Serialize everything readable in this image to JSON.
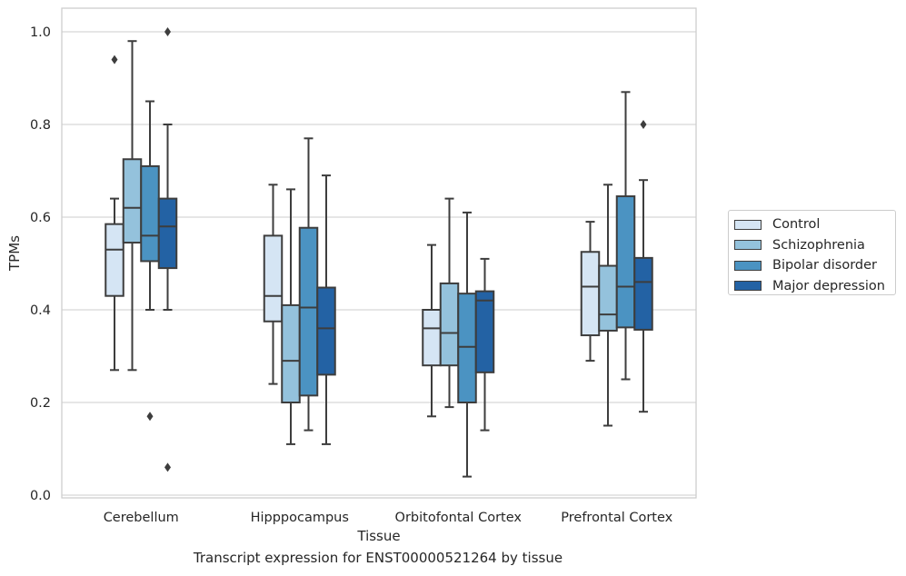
{
  "chart_data": {
    "type": "box",
    "caption": "Transcript expression for ENST00000521264 by tissue",
    "xlabel": "Tissue",
    "ylabel": "TPMs",
    "ylim": [
      -0.01,
      1.05
    ],
    "yticks": [
      0.0,
      0.2,
      0.4,
      0.6,
      0.8,
      1.0
    ],
    "ytick_labels": [
      "0.0",
      "0.2",
      "0.4",
      "0.6",
      "0.8",
      "1.0"
    ],
    "grid": "horizontal",
    "legend_position": "right",
    "categories": [
      "Cerebellum",
      "Hipppocampus",
      "Orbitofontal Cortex",
      "Prefrontal Cortex"
    ],
    "series": [
      {
        "name": "Control",
        "color": "#d5e5f4",
        "boxes": [
          {
            "whislo": 0.27,
            "q1": 0.43,
            "med": 0.53,
            "q3": 0.585,
            "whishi": 0.64,
            "fliers": [
              0.94
            ]
          },
          {
            "whislo": 0.24,
            "q1": 0.375,
            "med": 0.43,
            "q3": 0.56,
            "whishi": 0.67,
            "fliers": []
          },
          {
            "whislo": 0.17,
            "q1": 0.28,
            "med": 0.36,
            "q3": 0.4,
            "whishi": 0.54,
            "fliers": []
          },
          {
            "whislo": 0.29,
            "q1": 0.345,
            "med": 0.45,
            "q3": 0.525,
            "whishi": 0.59,
            "fliers": []
          }
        ]
      },
      {
        "name": "Schizophrenia",
        "color": "#94c2dc",
        "boxes": [
          {
            "whislo": 0.27,
            "q1": 0.545,
            "med": 0.62,
            "q3": 0.725,
            "whishi": 0.98,
            "fliers": []
          },
          {
            "whislo": 0.11,
            "q1": 0.2,
            "med": 0.29,
            "q3": 0.41,
            "whishi": 0.66,
            "fliers": []
          },
          {
            "whislo": 0.19,
            "q1": 0.28,
            "med": 0.35,
            "q3": 0.457,
            "whishi": 0.64,
            "fliers": []
          },
          {
            "whislo": 0.15,
            "q1": 0.355,
            "med": 0.39,
            "q3": 0.495,
            "whishi": 0.67,
            "fliers": []
          }
        ]
      },
      {
        "name": "Bipolar disorder",
        "color": "#4b93c2",
        "boxes": [
          {
            "whislo": 0.4,
            "q1": 0.505,
            "med": 0.56,
            "q3": 0.71,
            "whishi": 0.85,
            "fliers": [
              0.17
            ]
          },
          {
            "whislo": 0.14,
            "q1": 0.215,
            "med": 0.405,
            "q3": 0.577,
            "whishi": 0.77,
            "fliers": []
          },
          {
            "whislo": 0.04,
            "q1": 0.2,
            "med": 0.32,
            "q3": 0.435,
            "whishi": 0.61,
            "fliers": []
          },
          {
            "whislo": 0.25,
            "q1": 0.362,
            "med": 0.45,
            "q3": 0.645,
            "whishi": 0.87,
            "fliers": []
          }
        ]
      },
      {
        "name": "Major depression",
        "color": "#2362a4",
        "boxes": [
          {
            "whislo": 0.4,
            "q1": 0.49,
            "med": 0.58,
            "q3": 0.64,
            "whishi": 0.8,
            "fliers": [
              1.0,
              0.06
            ]
          },
          {
            "whislo": 0.11,
            "q1": 0.26,
            "med": 0.36,
            "q3": 0.448,
            "whishi": 0.69,
            "fliers": []
          },
          {
            "whislo": 0.14,
            "q1": 0.265,
            "med": 0.42,
            "q3": 0.44,
            "whishi": 0.51,
            "fliers": []
          },
          {
            "whislo": 0.18,
            "q1": 0.357,
            "med": 0.46,
            "q3": 0.512,
            "whishi": 0.68,
            "fliers": [
              0.8
            ]
          }
        ]
      }
    ]
  }
}
